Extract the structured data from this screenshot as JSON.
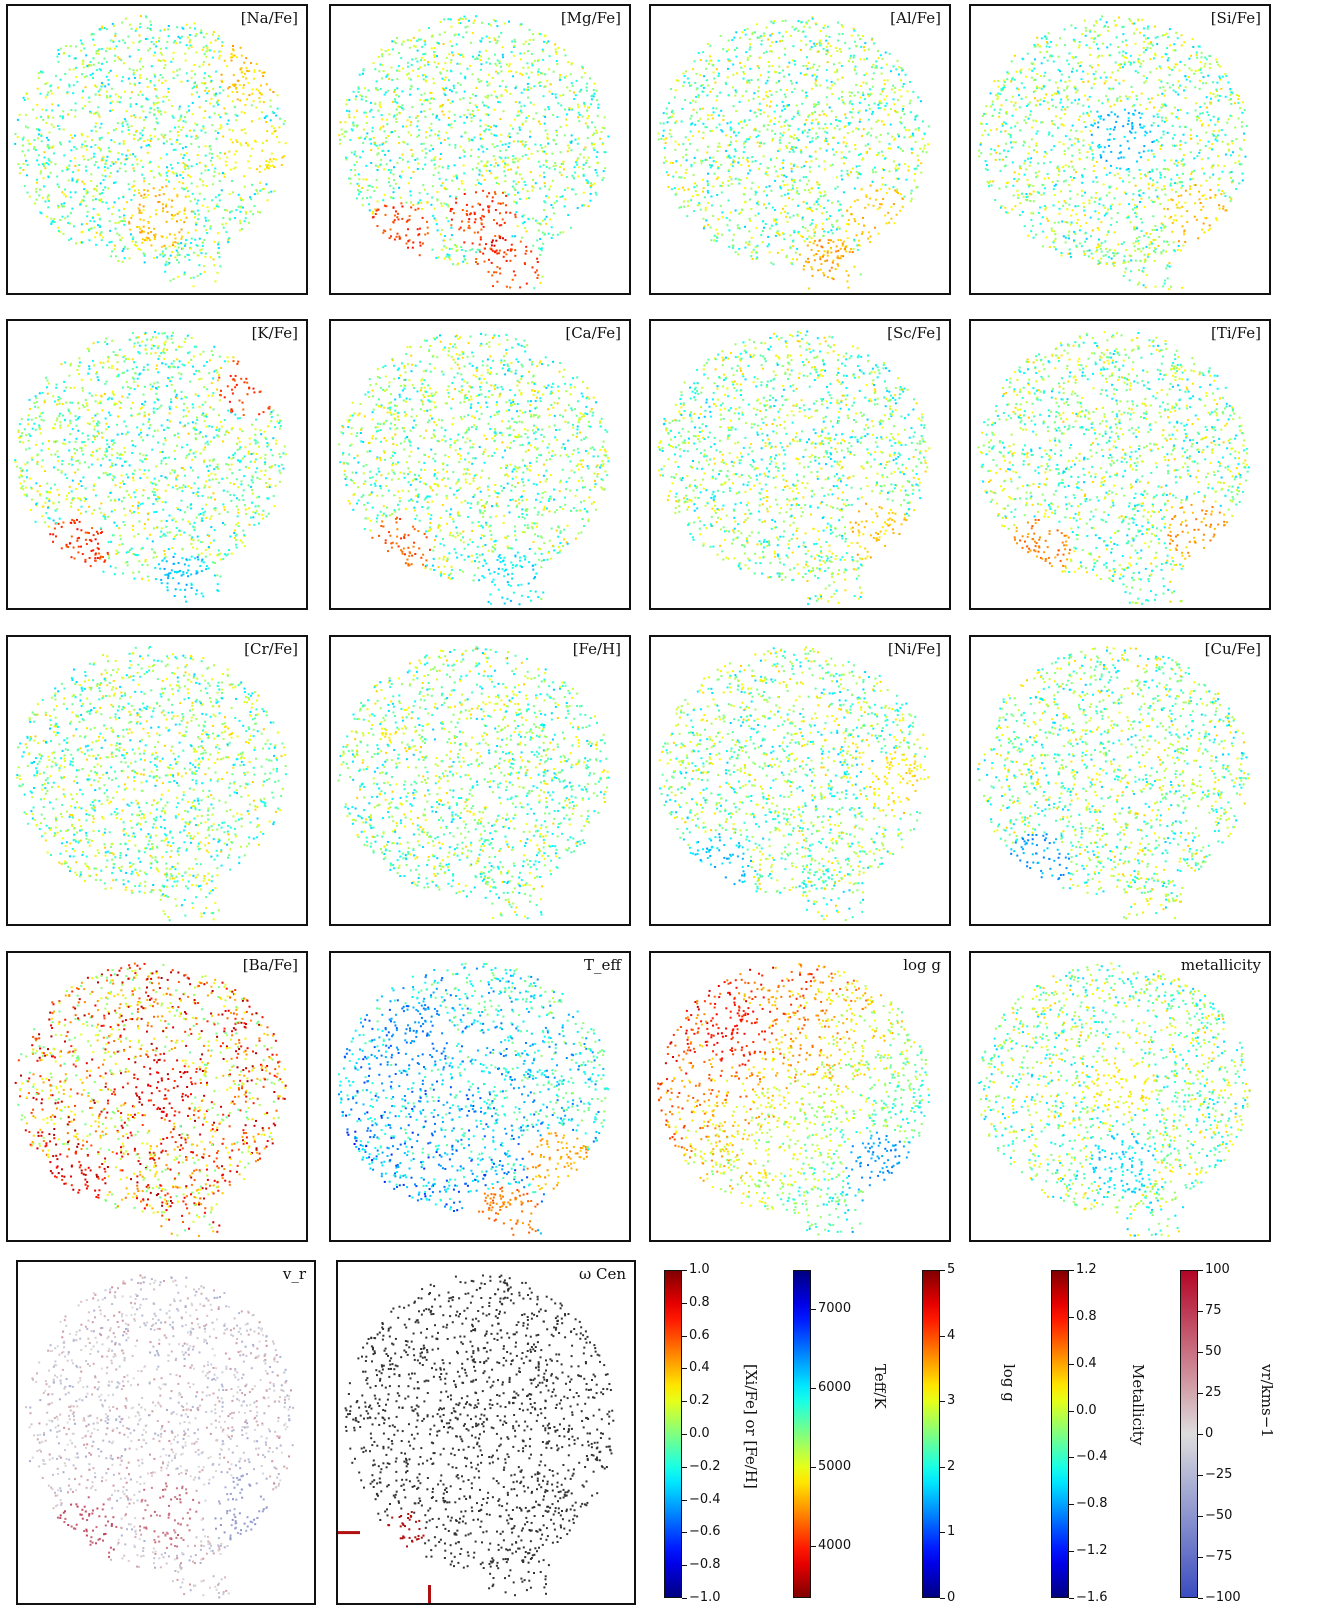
{
  "chart_data": {
    "type": "scatter",
    "description_note": "",
    "panels": [
      {
        "label": "[Na/Fe]",
        "colormap": "jet",
        "range": [
          -1.0,
          1.0
        ],
        "hotspots": [
          {
            "pos": "lower-center",
            "value": 0.5
          },
          {
            "pos": "upper-right",
            "value": 0.5
          },
          {
            "pos": "middle-right",
            "value": 0.4
          }
        ]
      },
      {
        "label": "[Mg/Fe]",
        "colormap": "jet",
        "range": [
          -1.0,
          1.0
        ],
        "hotspots": [
          {
            "pos": "lower-left",
            "value": 0.9
          },
          {
            "pos": "lower-center",
            "value": 0.9
          },
          {
            "pos": "bottom",
            "value": 0.9
          }
        ]
      },
      {
        "label": "[Al/Fe]",
        "colormap": "jet",
        "range": [
          -1.0,
          1.0
        ],
        "hotspots": [
          {
            "pos": "lower-right",
            "value": 0.5
          },
          {
            "pos": "bottom",
            "value": 0.6
          }
        ]
      },
      {
        "label": "[Si/Fe]",
        "colormap": "jet",
        "range": [
          -1.0,
          1.0
        ],
        "hotspots": [
          {
            "pos": "center",
            "value": -0.5
          },
          {
            "pos": "lower-right",
            "value": 0.5
          }
        ]
      },
      {
        "label": "[K/Fe]",
        "colormap": "jet",
        "range": [
          -1.0,
          1.0
        ],
        "hotspots": [
          {
            "pos": "lower-left",
            "value": 0.9
          },
          {
            "pos": "upper-right",
            "value": 0.9
          },
          {
            "pos": "bottom",
            "value": -0.5
          }
        ]
      },
      {
        "label": "[Ca/Fe]",
        "colormap": "jet",
        "range": [
          -1.0,
          1.0
        ],
        "hotspots": [
          {
            "pos": "lower-left",
            "value": 0.8
          },
          {
            "pos": "bottom",
            "value": -0.4
          }
        ]
      },
      {
        "label": "[Sc/Fe]",
        "colormap": "jet",
        "range": [
          -1.0,
          1.0
        ],
        "hotspots": [
          {
            "pos": "lower-right",
            "value": 0.5
          }
        ]
      },
      {
        "label": "[Ti/Fe]",
        "colormap": "jet",
        "range": [
          -1.0,
          1.0
        ],
        "hotspots": [
          {
            "pos": "lower-left",
            "value": 0.7
          },
          {
            "pos": "lower-right",
            "value": 0.6
          }
        ]
      },
      {
        "label": "[Cr/Fe]",
        "colormap": "jet",
        "range": [
          -1.0,
          1.0
        ],
        "hotspots": []
      },
      {
        "label": "[Fe/H]",
        "colormap": "jet",
        "range": [
          -1.0,
          1.0
        ],
        "hotspots": []
      },
      {
        "label": "[Ni/Fe]",
        "colormap": "jet",
        "range": [
          -1.0,
          1.0
        ],
        "hotspots": [
          {
            "pos": "middle-right",
            "value": 0.4
          },
          {
            "pos": "lower-left",
            "value": -0.5
          }
        ]
      },
      {
        "label": "[Cu/Fe]",
        "colormap": "jet",
        "range": [
          -1.0,
          1.0
        ],
        "hotspots": [
          {
            "pos": "lower-left",
            "value": -0.6
          }
        ]
      },
      {
        "label": "[Ba/Fe]",
        "colormap": "jet",
        "range": [
          -1.0,
          1.0
        ],
        "hotspots": [
          {
            "pos": "center",
            "value": 0.9
          },
          {
            "pos": "lower-left",
            "value": 0.9
          }
        ]
      },
      {
        "label": "T_eff",
        "colormap": "jet_r",
        "range": [
          3700,
          7400
        ],
        "hotspots": [
          {
            "pos": "upper-left",
            "value": 6600
          },
          {
            "pos": "lower-right",
            "value": 4200
          },
          {
            "pos": "bottom",
            "value": 3900
          }
        ]
      },
      {
        "label": "log g",
        "colormap": "jet",
        "range": [
          0,
          5
        ],
        "hotspots": [
          {
            "pos": "upper-left",
            "value": 4.4
          },
          {
            "pos": "lower-right",
            "value": 1.0
          }
        ]
      },
      {
        "label": "metallicity",
        "colormap": "jet",
        "range": [
          -1.6,
          1.2
        ],
        "hotspots": [
          {
            "pos": "center",
            "value": 0.3
          },
          {
            "pos": "lower-center",
            "value": -0.8
          }
        ]
      },
      {
        "label": "v_r",
        "colormap": "coolwarm",
        "range": [
          -100,
          100
        ],
        "hotspots": [
          {
            "pos": "lower-left",
            "value": 90
          },
          {
            "pos": "lower-center",
            "value": 70
          },
          {
            "pos": "lower-right",
            "value": -60
          }
        ]
      },
      {
        "label": "ω Cen",
        "colormap": "gray",
        "range": [
          0,
          1
        ],
        "hotspots": [
          {
            "pos": "lower-left",
            "value": 1
          }
        ]
      }
    ],
    "colorbars": [
      {
        "label": "[Xi/Fe] or [Fe/H]",
        "ticks": [
          "1.0",
          "0.8",
          "0.6",
          "0.4",
          "0.2",
          "0.0",
          "−0.2",
          "−0.4",
          "−0.6",
          "−0.8",
          "−1.0"
        ],
        "colormap": "jet"
      },
      {
        "label": "Teff/K",
        "ticks": [
          "7000",
          "6000",
          "5000",
          "4000"
        ],
        "colormap": "jet_r"
      },
      {
        "label": "log g",
        "ticks": [
          "5",
          "4",
          "3",
          "2",
          "1",
          "0"
        ],
        "colormap": "jet"
      },
      {
        "label": "Metallicity",
        "ticks": [
          "1.2",
          "0.8",
          "0.4",
          "0.0",
          "−0.4",
          "−0.8",
          "−1.2",
          "−1.6"
        ],
        "colormap": "jet"
      },
      {
        "label": "vr/kms−1",
        "ticks": [
          "100",
          "75",
          "50",
          "25",
          "0",
          "−25",
          "−50",
          "−75",
          "−100"
        ],
        "colormap": "coolwarm"
      }
    ]
  }
}
